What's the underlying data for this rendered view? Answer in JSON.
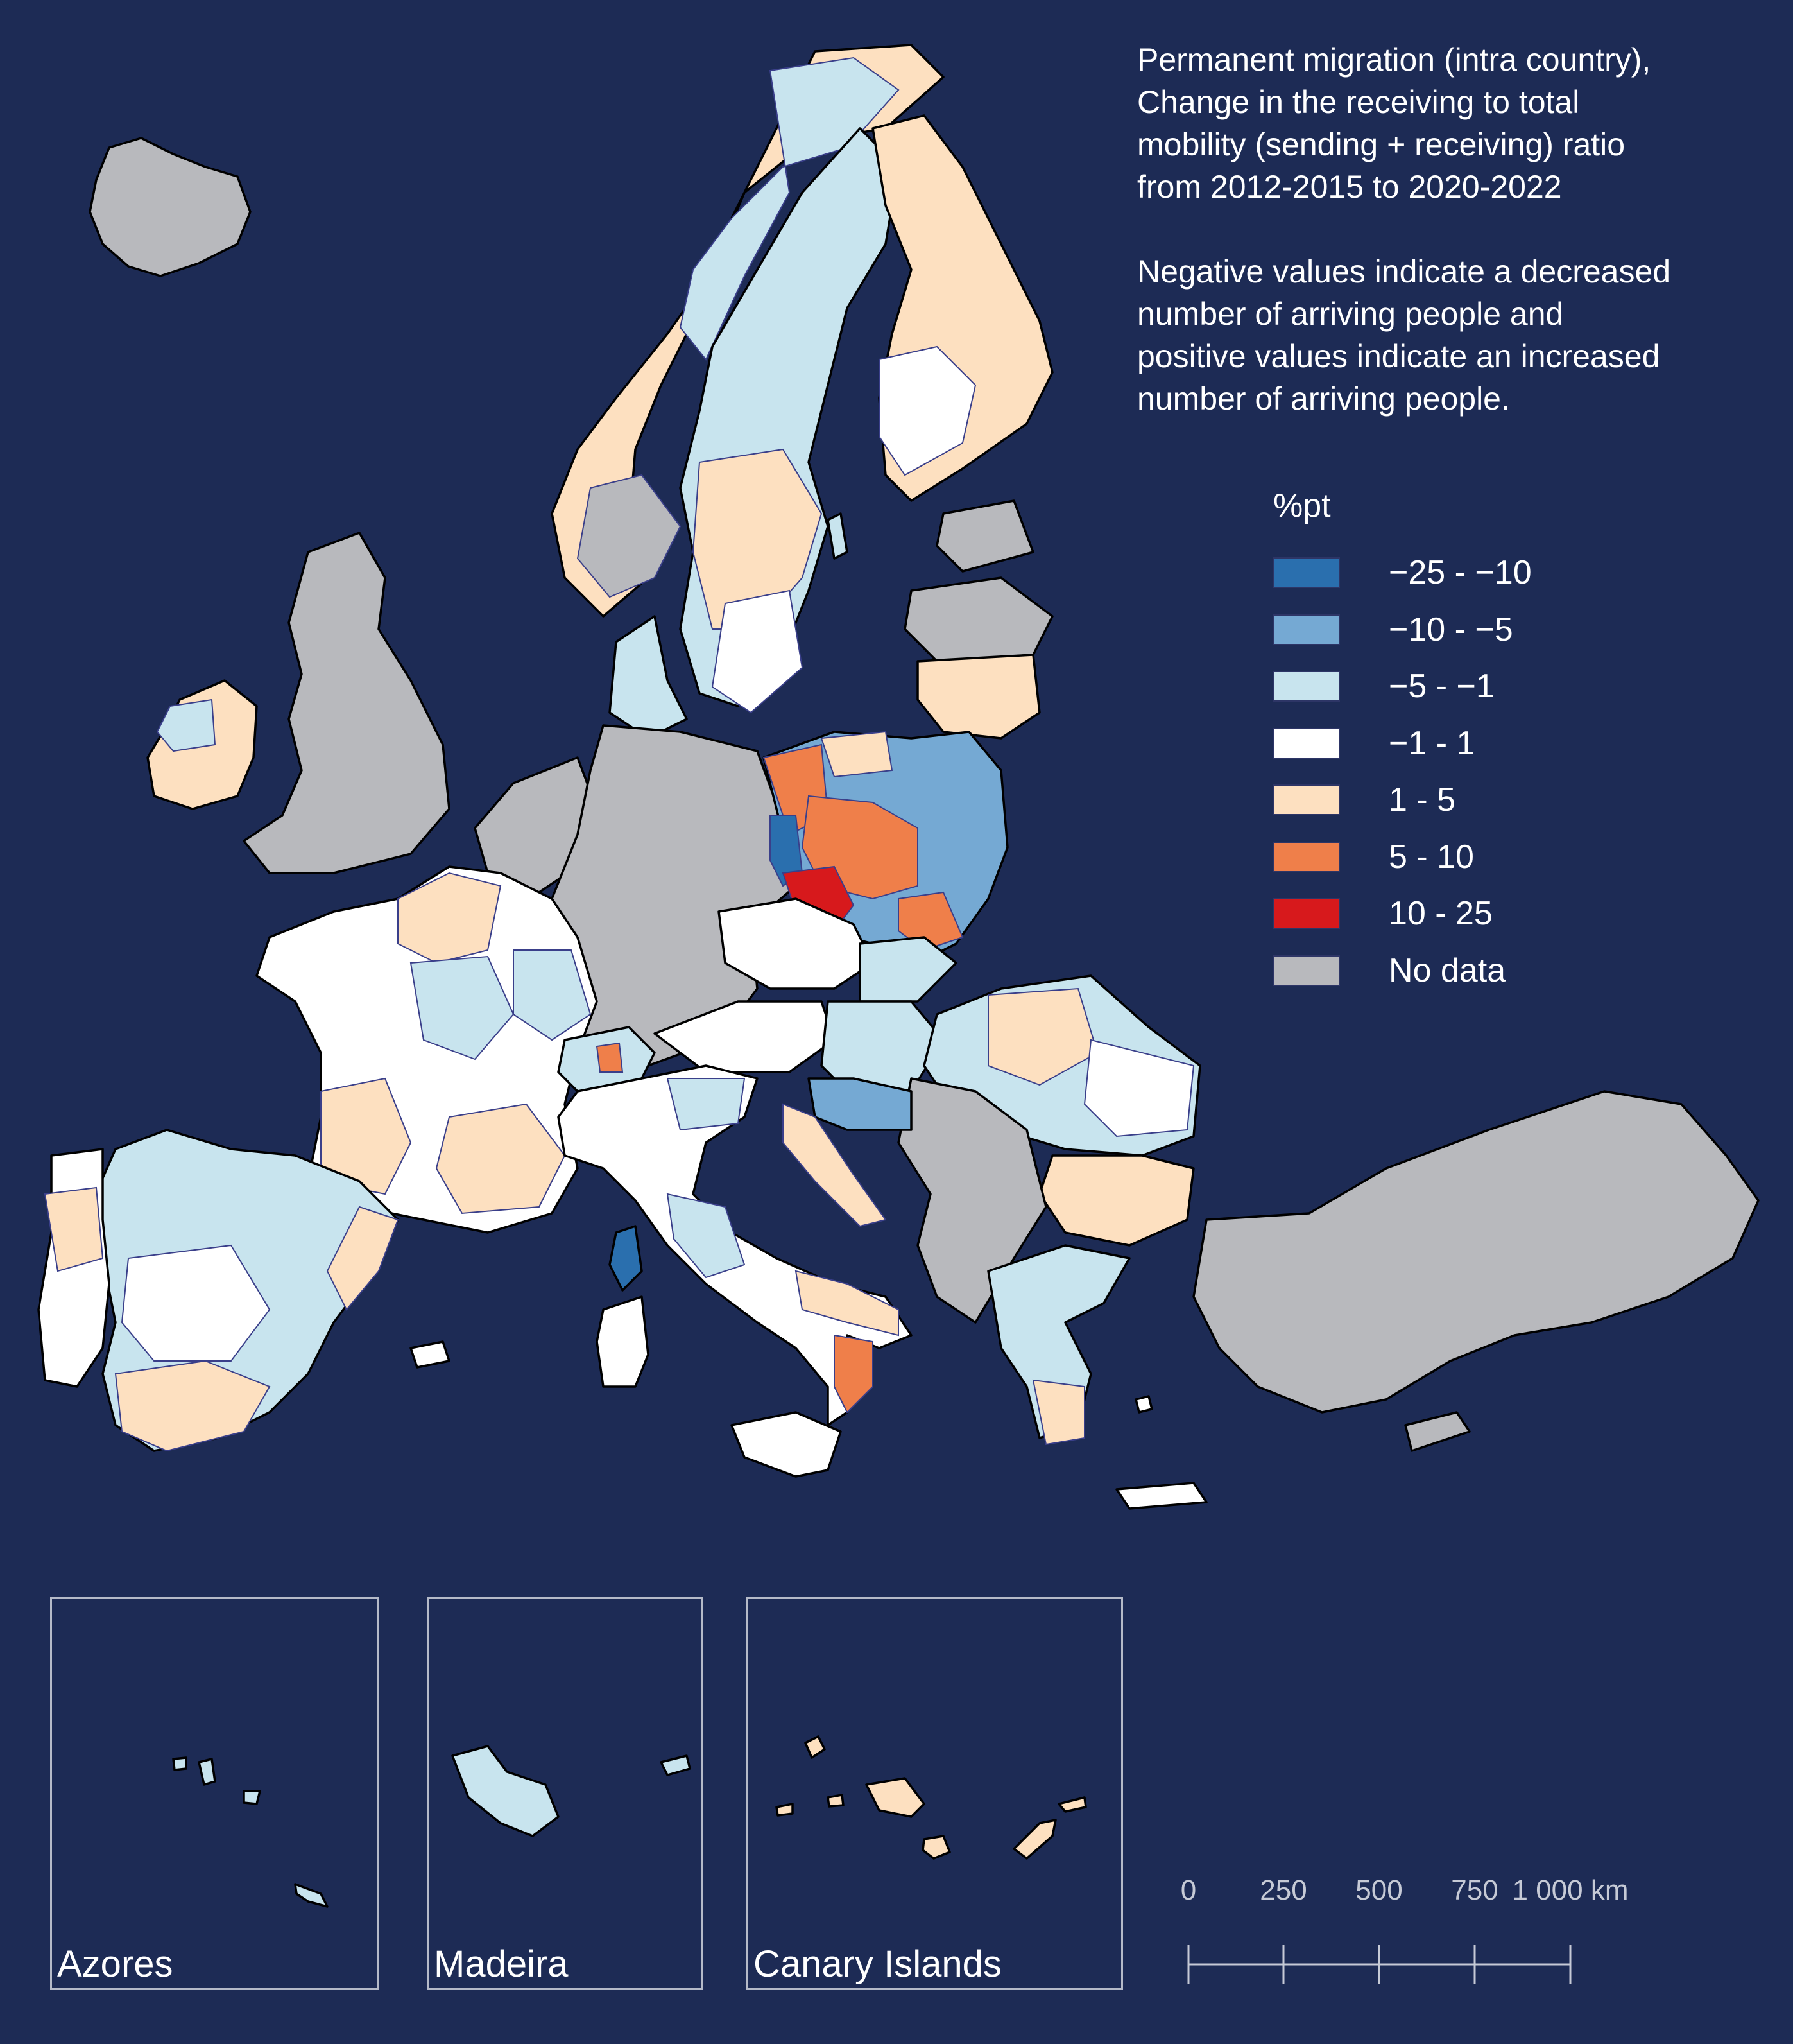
{
  "title": {
    "line1": "Permanent migration (intra country),",
    "line2": "Change in the receiving to total",
    "line3": "mobility (sending + receiving) ratio",
    "line4": "from 2012-2015 to 2020-2022",
    "note1": "Negative values indicate a decreased",
    "note2": "number of arriving people and",
    "note3": "positive values indicate an increased",
    "note4": "number of arriving people."
  },
  "legend": {
    "title": "%pt",
    "items": [
      {
        "label": "−25 - −10",
        "color": "#2a6fae"
      },
      {
        "label": "−10 - −5",
        "color": "#75a9d3"
      },
      {
        "label": "−5 - −1",
        "color": "#c8e4ee"
      },
      {
        "label": "−1 - 1",
        "color": "#ffffff"
      },
      {
        "label": "1 - 5",
        "color": "#fde0c0"
      },
      {
        "label": "5 - 10",
        "color": "#ef7f4a"
      },
      {
        "label": "10 - 25",
        "color": "#d7191c"
      },
      {
        "label": "No data",
        "color": "#b8b9bd"
      }
    ]
  },
  "insets": [
    {
      "label": "Azores"
    },
    {
      "label": "Madeira"
    },
    {
      "label": "Canary Islands"
    }
  ],
  "scale_bar": {
    "ticks": [
      "0",
      "250",
      "500",
      "750",
      "1 000 km"
    ]
  },
  "colors": {
    "background": "#1d2b55",
    "border_country": "#000000",
    "border_region": "#3a3f8a"
  }
}
